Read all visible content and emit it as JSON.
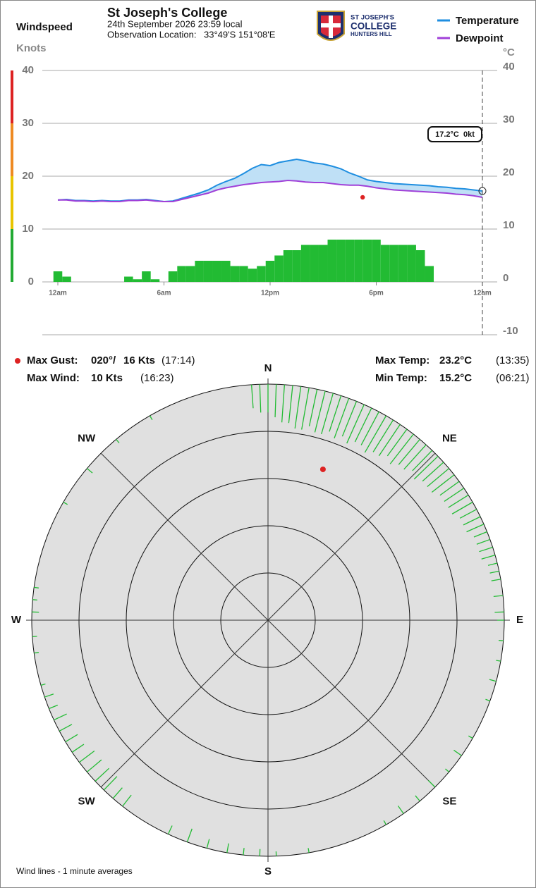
{
  "header": {
    "title": "St Joseph's College",
    "date": "24th September 2026  23:59 local",
    "location_label": "Observation Location:",
    "location": "33°49'S 151°08'E",
    "logo_lines": [
      "ST JOSEPH'S",
      "COLLEGE",
      "HUNTERS HILL"
    ]
  },
  "chart_data": [
    {
      "type": "line",
      "ylabel": "Windspeed",
      "yunit": "Knots",
      "y2unit": "°C",
      "x": [
        0,
        0.5,
        1,
        1.5,
        2,
        2.5,
        3,
        3.5,
        4,
        4.5,
        5,
        5.5,
        6,
        6.5,
        7,
        7.5,
        8,
        8.5,
        9,
        9.5,
        10,
        10.5,
        11,
        11.5,
        12,
        12.5,
        13,
        13.5,
        14,
        14.5,
        15,
        15.5,
        16,
        16.5,
        17,
        17.5,
        18,
        18.5,
        19,
        19.5,
        20,
        20.5,
        21,
        21.5,
        22,
        22.5,
        23,
        23.5,
        24
      ],
      "xlim": [
        0,
        24
      ],
      "xticks": [
        {
          "value": 0,
          "label": "12am"
        },
        {
          "value": 6,
          "label": "6am"
        },
        {
          "value": 12,
          "label": "12pm"
        },
        {
          "value": 18,
          "label": "6pm"
        },
        {
          "value": 24,
          "label": "12am"
        }
      ],
      "ylim": [
        0,
        40
      ],
      "yticks": [
        0,
        10,
        20,
        30,
        40
      ],
      "yband_colors": [
        "#22aa33",
        "#e8c400",
        "#ee8a22",
        "#dd2222"
      ],
      "y2lim": [
        -10,
        40
      ],
      "y2ticks": [
        -10,
        0,
        10,
        20,
        30,
        40
      ],
      "grid": true,
      "legend": "top-right",
      "series": [
        {
          "name": "Temperature",
          "color": "#1e8ee0",
          "axis": "y2",
          "values": [
            15.5,
            15.6,
            15.4,
            15.4,
            15.3,
            15.4,
            15.3,
            15.3,
            15.5,
            15.5,
            15.6,
            15.4,
            15.2,
            15.3,
            15.8,
            16.3,
            16.8,
            17.4,
            18.3,
            19.0,
            19.6,
            20.5,
            21.5,
            22.2,
            22.0,
            22.6,
            22.9,
            23.2,
            22.9,
            22.5,
            22.3,
            21.9,
            21.4,
            20.6,
            20.0,
            19.3,
            19.0,
            18.8,
            18.6,
            18.5,
            18.4,
            18.3,
            18.2,
            18.0,
            17.9,
            17.7,
            17.6,
            17.4,
            17.2
          ]
        },
        {
          "name": "Dewpoint",
          "color": "#a040d8",
          "axis": "y2",
          "values": [
            15.5,
            15.5,
            15.3,
            15.3,
            15.2,
            15.3,
            15.2,
            15.2,
            15.4,
            15.4,
            15.5,
            15.3,
            15.2,
            15.2,
            15.6,
            16.0,
            16.4,
            16.8,
            17.4,
            17.8,
            18.1,
            18.4,
            18.6,
            18.8,
            18.9,
            19.0,
            19.2,
            19.1,
            18.9,
            18.8,
            18.8,
            18.6,
            18.4,
            18.3,
            18.3,
            18.1,
            17.8,
            17.6,
            17.4,
            17.3,
            17.2,
            17.1,
            17.0,
            16.9,
            16.8,
            16.6,
            16.5,
            16.3,
            16.0
          ]
        }
      ],
      "fill_color": "#bfe0f6",
      "wind": {
        "color": "#22bb33",
        "values": [
          2,
          1,
          0,
          0,
          0,
          0,
          0,
          0,
          1,
          0.5,
          2,
          0.5,
          0,
          2,
          3,
          3,
          4,
          4,
          4,
          4,
          3,
          3,
          2.5,
          3,
          4,
          5,
          6,
          6,
          7,
          7,
          7,
          8,
          8,
          8,
          8,
          8,
          8,
          7,
          7,
          7,
          7,
          6,
          3,
          0,
          0,
          0,
          0,
          0,
          0
        ]
      },
      "gust": {
        "x": 17.23,
        "value": 16,
        "color": "#dd2222"
      },
      "cursor_label": "17.2°C  0kt"
    },
    {
      "type": "polar",
      "rlim": [
        0,
        50
      ],
      "rticks": [
        0,
        10,
        20,
        30,
        40
      ],
      "compass": [
        {
          "value": 0,
          "label": "N"
        },
        {
          "value": 45,
          "label": "NE"
        },
        {
          "value": 90,
          "label": "E"
        },
        {
          "value": 135,
          "label": "SE"
        },
        {
          "value": 180,
          "label": "S"
        },
        {
          "value": 225,
          "label": "SW"
        },
        {
          "value": 270,
          "label": "W"
        },
        {
          "value": 315,
          "label": "NW"
        }
      ],
      "wind": {
        "color": "#22bb33",
        "direction": [
          356,
          358,
          0,
          2,
          4,
          6,
          8,
          10,
          12,
          14,
          16,
          18,
          20,
          22,
          24,
          26,
          28,
          30,
          32,
          34,
          36,
          38,
          40,
          42,
          44,
          46,
          48,
          50,
          52,
          54,
          56,
          58,
          60,
          62,
          64,
          66,
          68,
          70,
          72,
          74,
          76,
          78,
          80,
          84,
          88,
          300,
          310,
          320,
          330,
          218,
          221,
          224,
          227,
          230,
          233,
          236,
          239,
          242,
          245,
          248,
          251,
          254,
          262,
          266,
          272,
          275,
          278,
          170,
          178,
          182,
          186,
          190,
          195,
          200,
          205,
          120,
          125,
          130,
          135,
          140,
          145,
          150,
          90,
          95,
          100,
          105,
          110
        ],
        "speed": [
          5,
          6,
          6,
          7,
          8,
          8,
          9,
          9,
          8,
          9,
          9,
          8,
          9,
          8,
          9,
          8,
          8,
          9,
          8,
          8,
          7,
          8,
          7,
          7,
          6,
          7,
          6,
          6,
          6,
          5,
          5,
          5,
          5,
          4,
          4,
          4,
          3,
          3,
          3,
          3,
          2,
          2,
          2,
          2,
          2,
          1,
          1.5,
          1,
          1,
          3,
          3,
          4,
          4,
          4,
          4,
          3,
          3,
          3,
          3,
          2,
          2,
          1,
          1,
          1,
          1.5,
          1,
          1,
          1,
          1,
          1.5,
          1.5,
          2,
          2,
          3,
          2,
          1,
          2,
          1,
          2,
          1.5,
          2,
          1,
          1.5,
          1,
          1,
          1.5,
          1
        ]
      },
      "gust": {
        "direction": 20,
        "speed": 16,
        "color": "#dd2222"
      }
    }
  ],
  "stats": {
    "max_gust": {
      "label": "Max Gust:",
      "direction": "020°/",
      "speed": "16 Kts",
      "time": "(17:14)"
    },
    "max_wind": {
      "label": "Max Wind:",
      "speed": "10 Kts",
      "time": "(16:23)"
    },
    "max_temp": {
      "label": "Max Temp:",
      "value": "23.2°C",
      "time": "(13:35)"
    },
    "min_temp": {
      "label": "Min Temp:",
      "value": "15.2°C",
      "time": "(06:21)"
    }
  },
  "footnote": "Wind lines - 1 minute averages"
}
